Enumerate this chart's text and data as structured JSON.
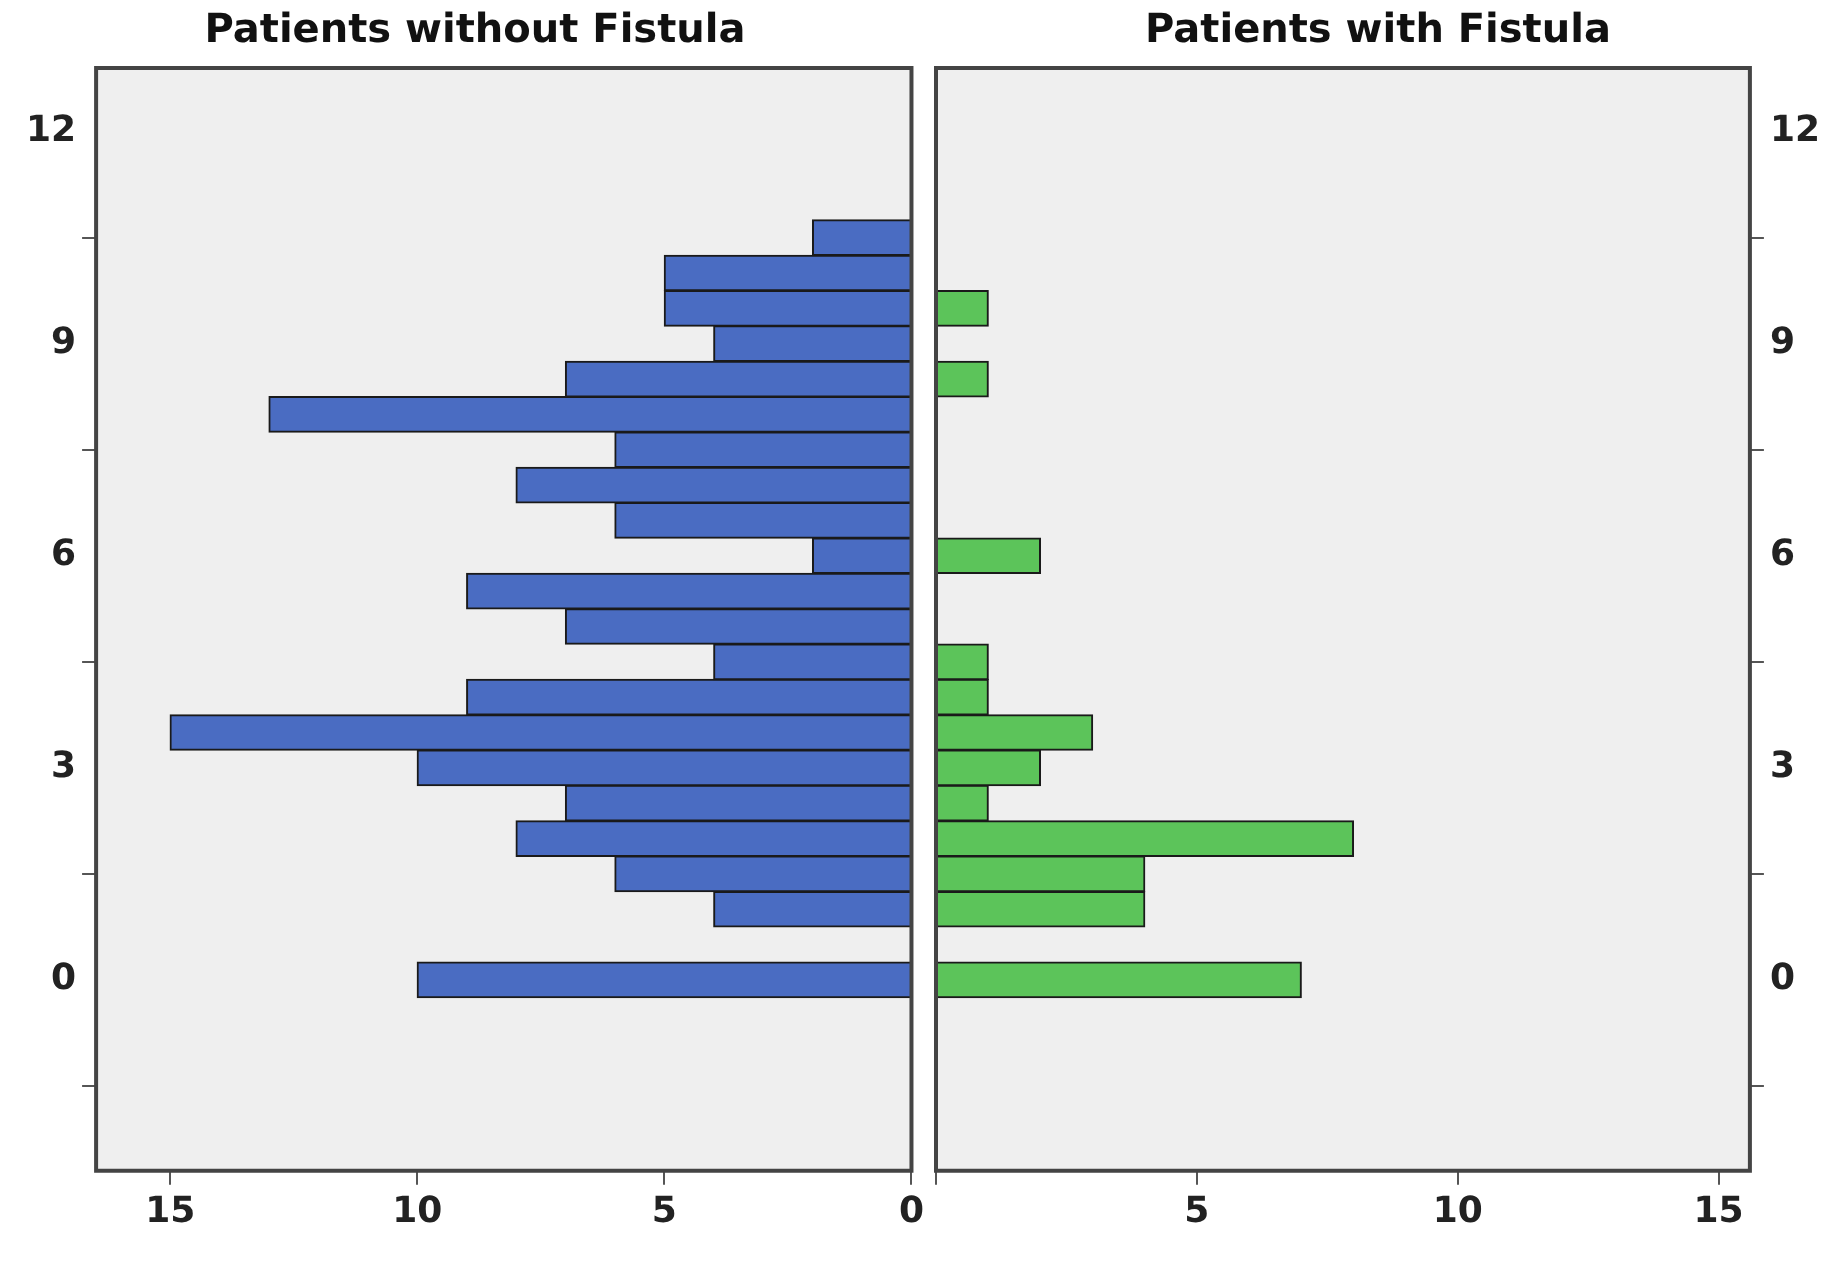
{
  "chart_data": [
    {
      "type": "histogram",
      "orientation": "horizontal",
      "title": "Patients without Fistula",
      "color": "#4a6cc2",
      "bins": [
        -0.25,
        0.25,
        0.75,
        1.25,
        1.75,
        2.25,
        2.75,
        3.25,
        3.75,
        4.25,
        4.75,
        5.25,
        5.75,
        6.25,
        6.75,
        7.25,
        7.75,
        8.25,
        8.75,
        9.25,
        9.75,
        10.25,
        10.75
      ],
      "values": [
        10,
        0,
        4,
        6,
        8,
        7,
        10,
        15,
        9,
        4,
        7,
        9,
        2,
        6,
        8,
        6,
        13,
        7,
        4,
        5,
        5,
        2
      ],
      "xlim": [
        16.5,
        0
      ],
      "xticks": [
        15,
        10,
        5,
        0
      ],
      "ylim": [
        -2.7,
        12.9
      ],
      "yticks": [
        0,
        3,
        6,
        9,
        12
      ]
    },
    {
      "type": "histogram",
      "orientation": "horizontal",
      "title": "Patients with Fistula",
      "color": "#5cc45a",
      "bins": [
        -0.25,
        0.25,
        0.75,
        1.25,
        1.75,
        2.25,
        2.75,
        3.25,
        3.75,
        4.25,
        4.75,
        5.25,
        5.75,
        6.25,
        6.75,
        7.25,
        7.75,
        8.25,
        8.75,
        9.25,
        9.75,
        10.25,
        10.75
      ],
      "values": [
        7,
        0,
        4,
        4,
        8,
        1,
        2,
        3,
        1,
        1,
        0,
        0,
        2,
        0,
        0,
        0,
        0,
        1,
        0,
        1,
        0,
        0
      ],
      "xlim": [
        0,
        15.6
      ],
      "xticks": [
        {
          "value": 0,
          "label": null
        },
        5,
        10,
        15
      ],
      "ylim": [
        -2.7,
        12.9
      ],
      "yticks": [
        0,
        3,
        6,
        9,
        12
      ]
    }
  ]
}
